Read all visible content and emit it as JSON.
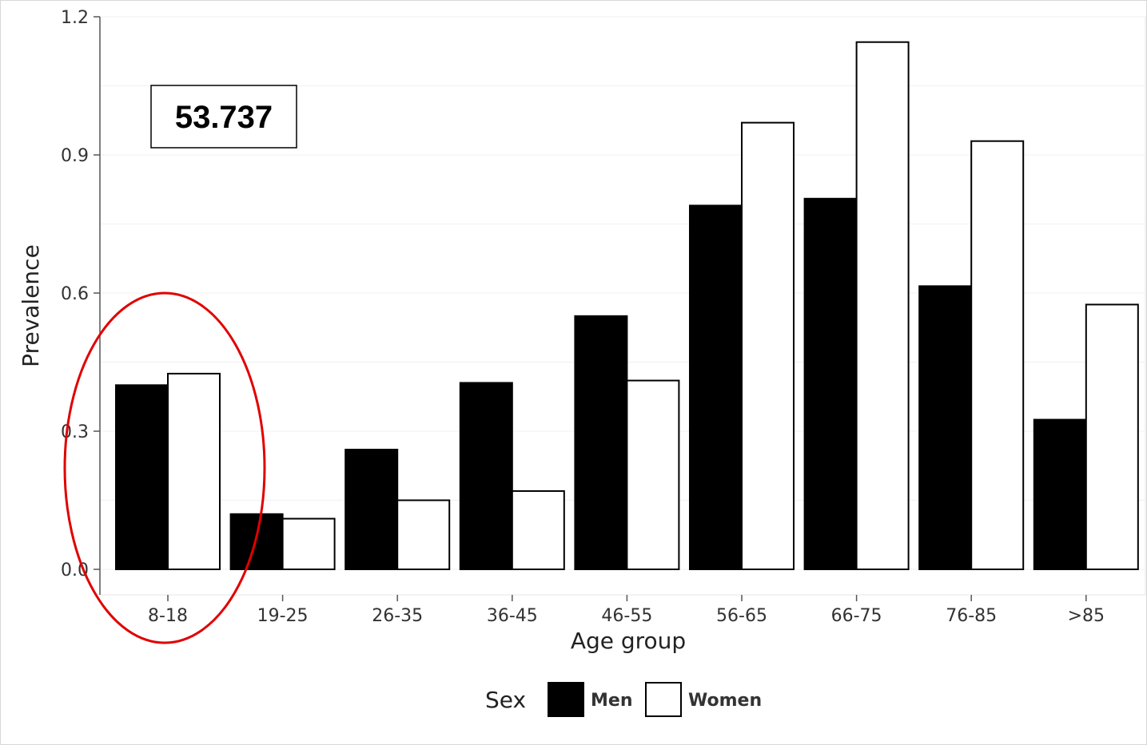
{
  "chart_data": {
    "type": "bar",
    "xlabel": "Age group",
    "ylabel": "Prevalence",
    "categories": [
      "8-18",
      "19-25",
      "26-35",
      "36-45",
      "46-55",
      "56-65",
      "66-75",
      "76-85",
      ">85"
    ],
    "series": [
      {
        "name": "Men",
        "color": "#000000",
        "values": [
          0.4,
          0.12,
          0.26,
          0.405,
          0.55,
          0.79,
          0.805,
          0.615,
          0.325
        ]
      },
      {
        "name": "Women",
        "color": "#ffffff",
        "values": [
          0.425,
          0.11,
          0.15,
          0.17,
          0.41,
          0.97,
          1.145,
          0.93,
          0.575
        ]
      }
    ],
    "ylim": [
      0,
      1.2
    ],
    "yticks": [
      "0.0",
      "0.3",
      "0.6",
      "0.9",
      "1.2"
    ],
    "ytick_values": [
      0,
      0.3,
      0.6,
      0.9,
      1.2
    ],
    "grid": true,
    "legend": {
      "title": "Sex",
      "position": "bottom"
    },
    "annotations": {
      "value_box": "53.737",
      "highlight_category": "8-18",
      "highlight_color": "#e00000"
    }
  }
}
